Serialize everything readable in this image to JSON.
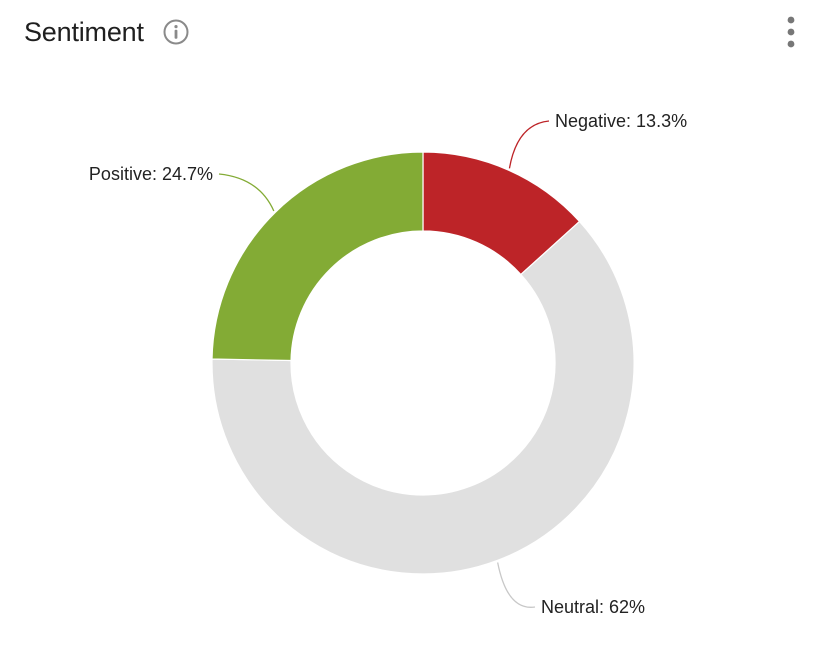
{
  "header": {
    "title": "Sentiment",
    "info_icon": "info-circle-icon",
    "menu_icon": "kebab-menu-icon"
  },
  "chart_data": {
    "type": "pie",
    "donut": true,
    "start_angle_deg": 0,
    "direction": "clockwise",
    "slices": [
      {
        "label": "Negative",
        "value": 13.3,
        "display": "Negative: 13.3%",
        "color": "#bd2428"
      },
      {
        "label": "Neutral",
        "value": 62,
        "display": "Neutral: 62%",
        "color": "#e0e0e0"
      },
      {
        "label": "Positive",
        "value": 24.7,
        "display": "Positive: 24.7%",
        "color": "#83ab35"
      }
    ],
    "connector_colors": {
      "Negative": "#bd2428",
      "Neutral": "#c8c8c8",
      "Positive": "#83ab35"
    }
  }
}
